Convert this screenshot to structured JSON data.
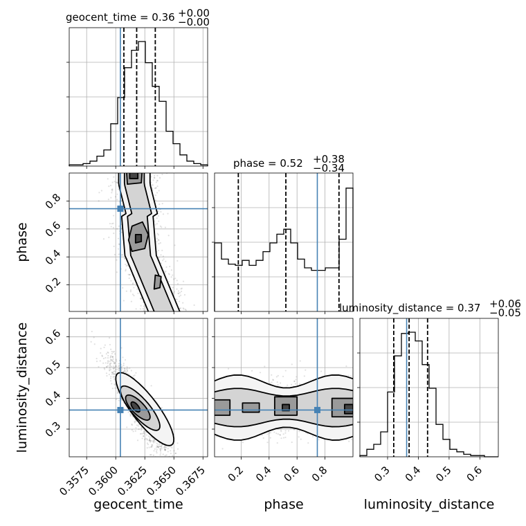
{
  "chart_data": {
    "type": "corner",
    "parameters": [
      "geocent_time",
      "phase",
      "luminosity_distance"
    ],
    "titles": [
      {
        "text": "geocent_time = 0.36",
        "sup": "+0.00",
        "sub": "−0.00"
      },
      {
        "text": "phase = 0.52",
        "sup": "+0.38",
        "sub": "−0.34"
      },
      {
        "text": "luminosity_distance = 0.37",
        "sup": "+0.06",
        "sub": "−0.05"
      }
    ],
    "ranges": {
      "geocent_time": [
        0.356,
        0.3679
      ],
      "phase": [
        0.01,
        1.0
      ],
      "luminosity_distance": [
        0.21,
        0.66
      ]
    },
    "ticks": {
      "geocent_time": {
        "values": [
          0.3575,
          0.36,
          0.3625,
          0.365,
          0.3675
        ],
        "labels": [
          "0.3575",
          "0.3600",
          "0.3625",
          "0.3650",
          "0.3675"
        ]
      },
      "phase": {
        "values": [
          0.2,
          0.4,
          0.6,
          0.8
        ],
        "labels": [
          "0.2",
          "0.4",
          "0.6",
          "0.8"
        ]
      },
      "luminosity_distance": {
        "values": [
          0.3,
          0.4,
          0.5,
          0.6
        ],
        "labels": [
          "0.3",
          "0.4",
          "0.5",
          "0.6"
        ]
      }
    },
    "truths": {
      "geocent_time": 0.3604,
      "phase": 0.745,
      "luminosity_distance": 0.362
    },
    "quantiles": {
      "geocent_time": [
        0.3607,
        0.3618,
        0.3634
      ],
      "phase": [
        0.18,
        0.52,
        0.9
      ],
      "luminosity_distance": [
        0.32,
        0.37,
        0.43
      ]
    },
    "histograms": {
      "geocent_time": [
        0.01,
        0.01,
        0.02,
        0.04,
        0.08,
        0.13,
        0.34,
        0.55,
        0.79,
        0.93,
        1.0,
        0.83,
        0.64,
        0.52,
        0.28,
        0.18,
        0.09,
        0.04,
        0.02,
        0.01
      ],
      "phase": [
        0.55,
        0.42,
        0.38,
        0.37,
        0.41,
        0.37,
        0.41,
        0.48,
        0.55,
        0.62,
        0.66,
        0.55,
        0.42,
        0.35,
        0.33,
        0.33,
        0.35,
        0.35,
        0.58,
        0.99
      ],
      "luminosity_distance": [
        0.01,
        0.06,
        0.1,
        0.2,
        0.52,
        0.81,
        0.99,
        1.0,
        0.93,
        0.74,
        0.55,
        0.26,
        0.14,
        0.06,
        0.04,
        0.02,
        0.01,
        0.01,
        0.0,
        0.0
      ]
    },
    "grid": true,
    "truth_color": "#4682b4",
    "contour_color": "#000000"
  }
}
